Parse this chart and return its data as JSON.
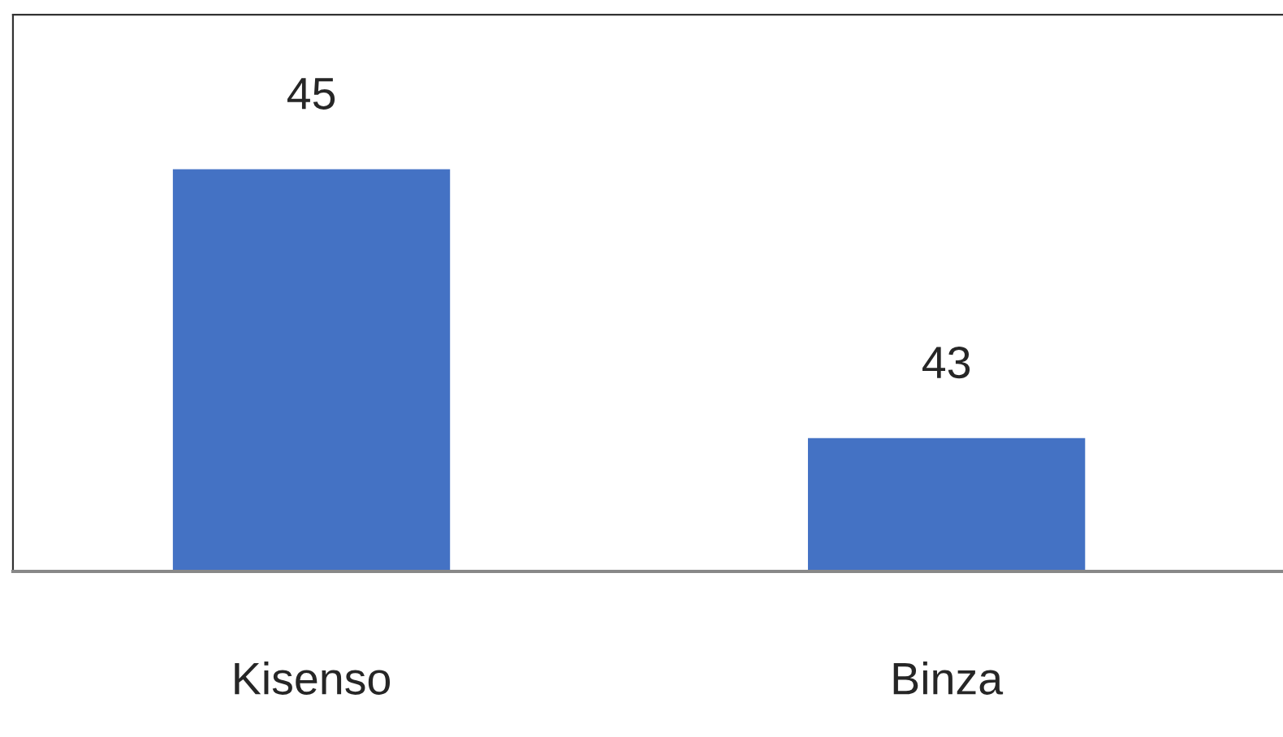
{
  "chart_data": {
    "type": "bar",
    "categories": [
      "Kisenso",
      "Binza"
    ],
    "values": [
      45,
      43
    ],
    "color": "#4472c4",
    "ylim": [
      42,
      46.14
    ],
    "data_labels": true,
    "grid": false,
    "legend": false,
    "tick_labels": "x"
  }
}
